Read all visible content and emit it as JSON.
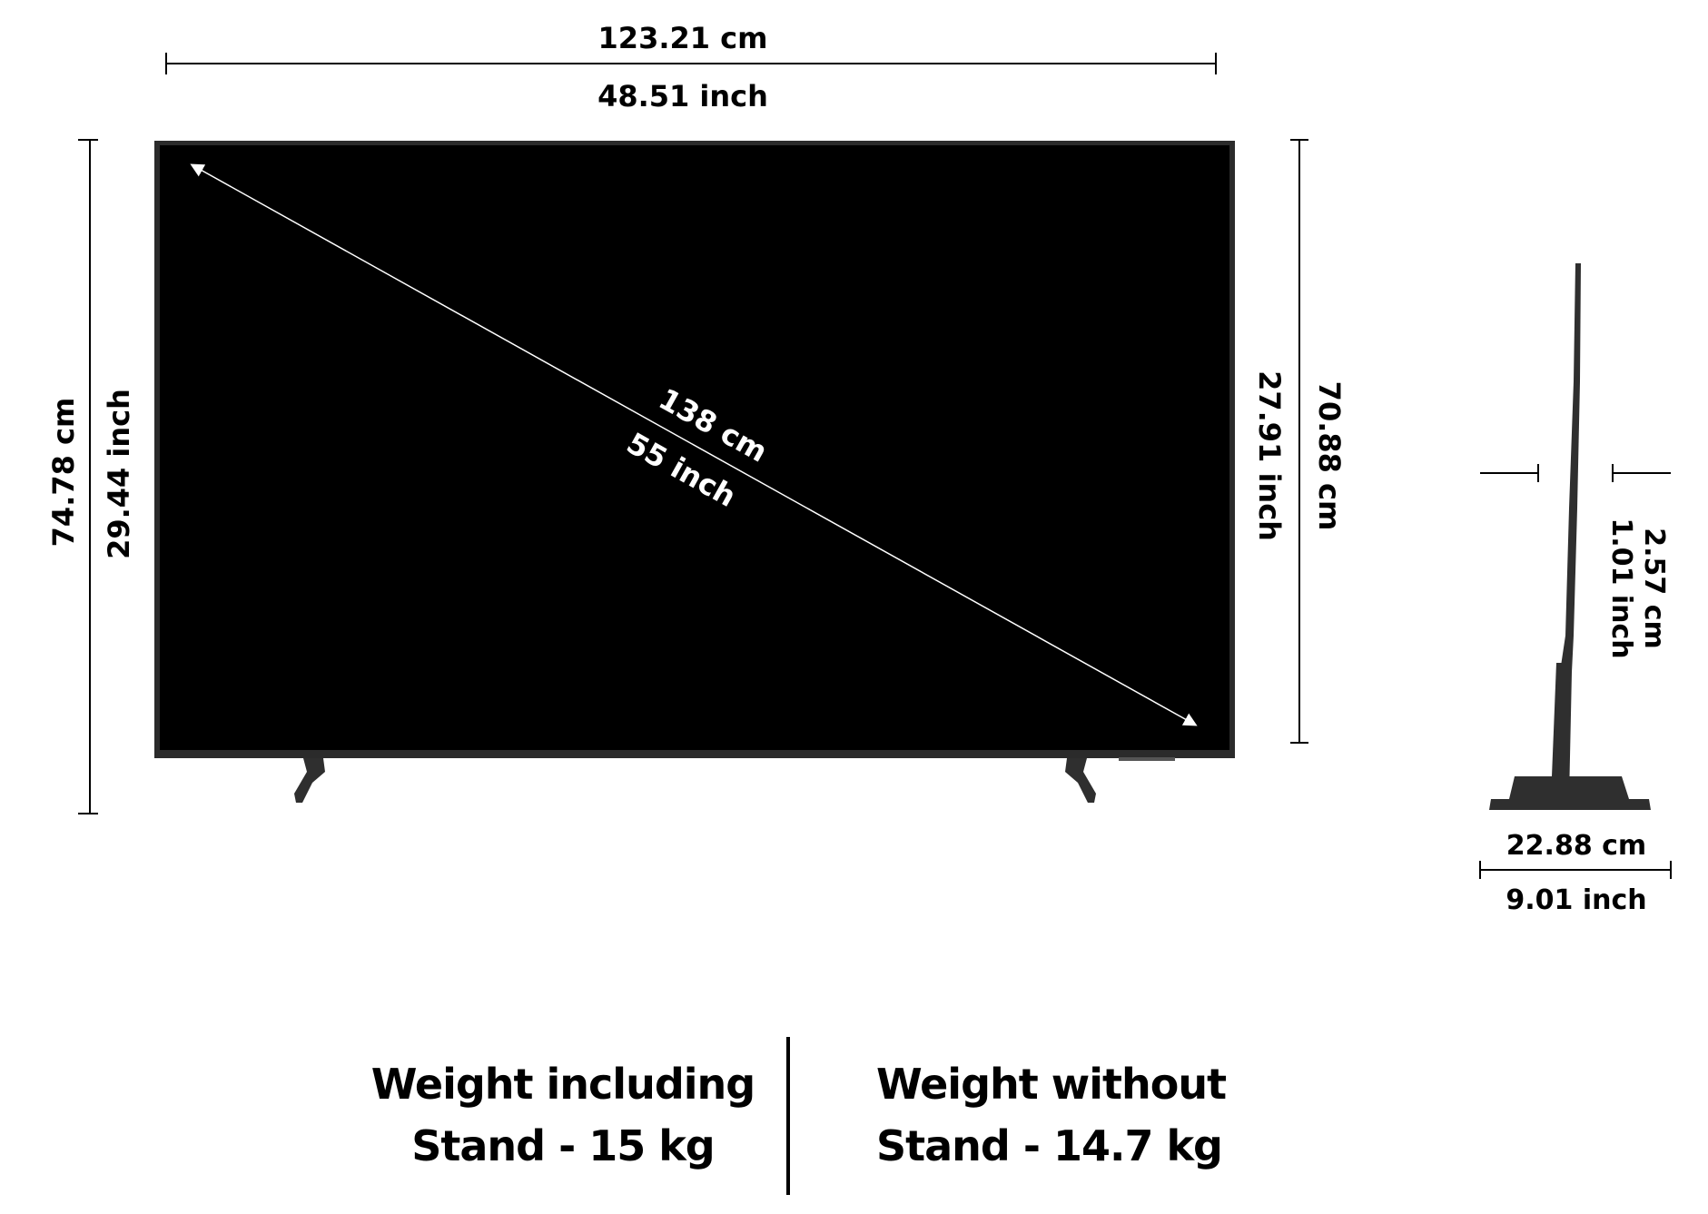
{
  "dimensions": {
    "width_cm": "123.21 cm",
    "width_inch": "48.51 inch",
    "height_with_stand_cm": "74.78 cm",
    "height_with_stand_inch": "29.44 inch",
    "height_panel_inch": "27.91 inch",
    "height_panel_cm": "70.88 cm",
    "diagonal_cm": "138 cm",
    "diagonal_inch": "55 inch",
    "depth_cm": "2.57 cm",
    "depth_inch": "1.01 inch",
    "stand_depth_cm": "22.88 cm",
    "stand_depth_inch": "9.01 inch"
  },
  "weights": {
    "with_stand_line1": "Weight including",
    "with_stand_line2": "Stand - 15 kg",
    "without_stand_line1": "Weight without",
    "without_stand_line2": "Stand - 14.7 kg"
  },
  "colors": {
    "screen": "#000000",
    "bezel": "#2b2b2b",
    "stand": "#2f2f2f",
    "annotation_on_screen": "#ffffff",
    "annotation": "#000000"
  }
}
